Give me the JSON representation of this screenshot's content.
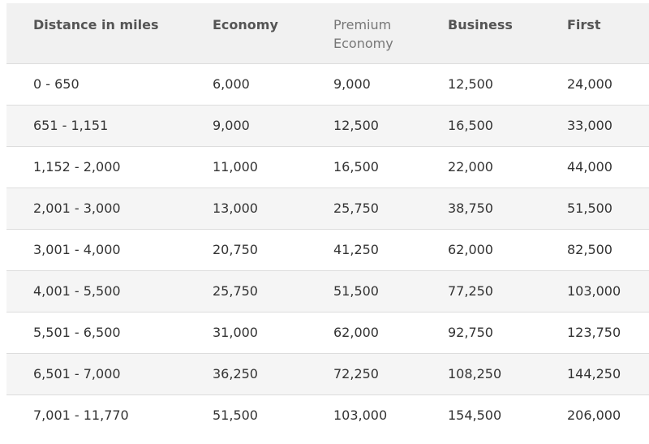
{
  "table": {
    "headers": [
      "Distance in miles",
      "Economy",
      "Premium Economy",
      "Business",
      "First"
    ],
    "rows": [
      [
        "0 - 650",
        "6,000",
        "9,000",
        "12,500",
        "24,000"
      ],
      [
        "651 - 1,151",
        "9,000",
        "12,500",
        "16,500",
        "33,000"
      ],
      [
        "1,152 - 2,000",
        "11,000",
        "16,500",
        "22,000",
        "44,000"
      ],
      [
        "2,001 - 3,000",
        "13,000",
        "25,750",
        "38,750",
        "51,500"
      ],
      [
        "3,001 - 4,000",
        "20,750",
        "41,250",
        "62,000",
        "82,500"
      ],
      [
        "4,001 - 5,500",
        "25,750",
        "51,500",
        "77,250",
        "103,000"
      ],
      [
        "5,501 - 6,500",
        "31,000",
        "62,000",
        "92,750",
        "123,750"
      ],
      [
        "6,501 - 7,000",
        "36,250",
        "72,250",
        "108,250",
        "144,250"
      ],
      [
        "7,001 - 11,770",
        "51,500",
        "103,000",
        "154,500",
        "206,000"
      ]
    ]
  }
}
